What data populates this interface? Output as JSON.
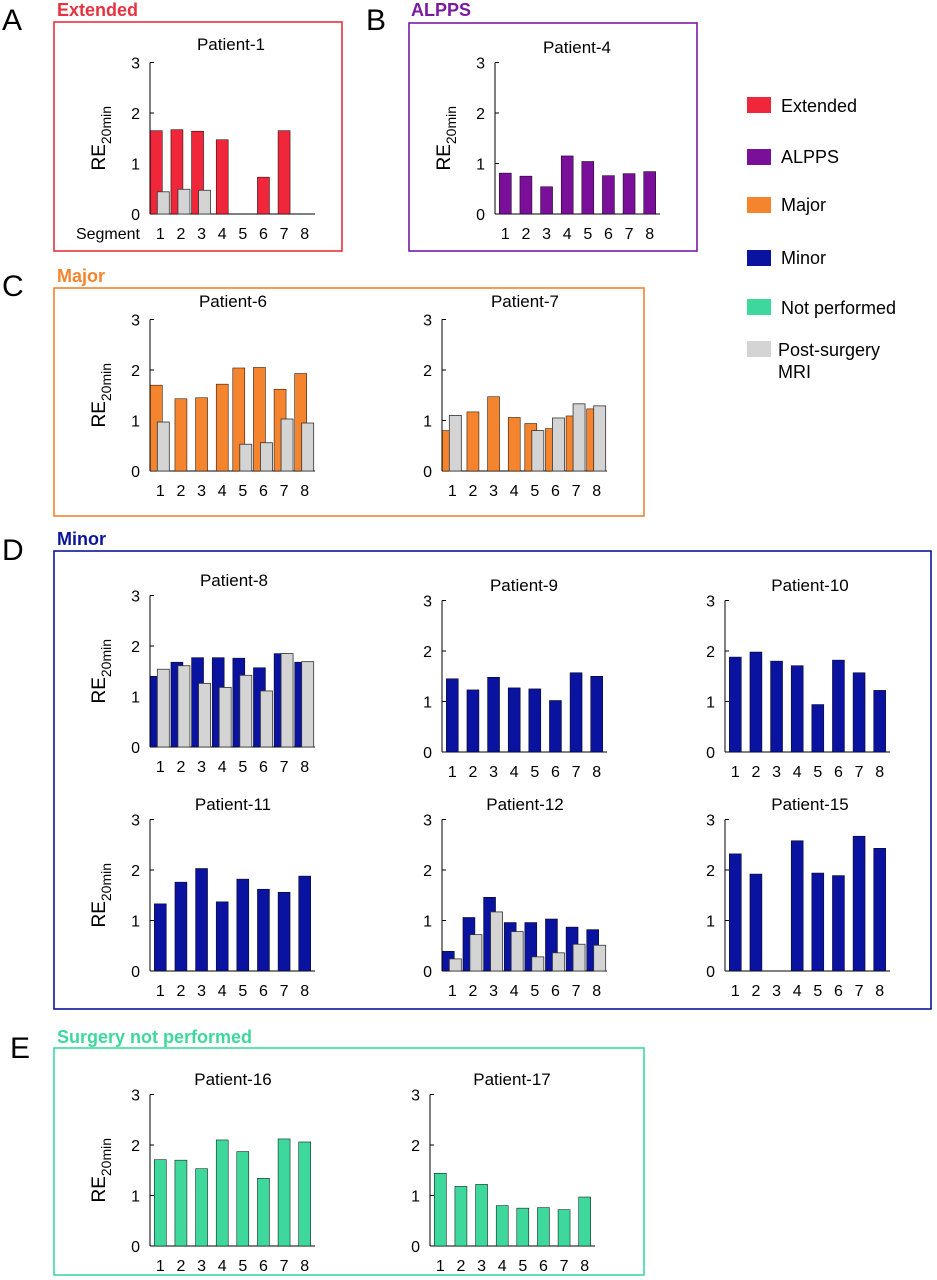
{
  "figure": {
    "y_label_main": "RE",
    "y_label_sub": "20min",
    "segment_label": "Segment",
    "legend": [
      {
        "key": "extended",
        "label": "Extended",
        "color": "#f0263a"
      },
      {
        "key": "alpps",
        "label": "ALPPS",
        "color": "#7a0f99"
      },
      {
        "key": "major",
        "label": "Major",
        "color": "#f5842e"
      },
      {
        "key": "minor",
        "label": "Minor",
        "color": "#0a12a0"
      },
      {
        "key": "not_performed",
        "label": "Not performed",
        "color": "#3fd89c"
      },
      {
        "key": "post_surgery",
        "label": "Post-surgery",
        "label2": "MRI",
        "color": "#d4d4d4"
      }
    ],
    "panels": [
      {
        "letter": "A",
        "title": "Extended",
        "color": "#e8323f",
        "charts": [
          0
        ]
      },
      {
        "letter": "B",
        "title": "ALPPS",
        "color": "#7a1aa0",
        "charts": [
          1
        ]
      },
      {
        "letter": "C",
        "title": "Major",
        "color": "#f5842e",
        "charts": [
          2,
          3
        ]
      },
      {
        "letter": "D",
        "title": "Minor",
        "color": "#0a1699",
        "charts": [
          4,
          5,
          6,
          7,
          8,
          9
        ]
      },
      {
        "letter": "E",
        "title": "Surgery not performed",
        "color": "#3fd89c",
        "charts": [
          10,
          11
        ]
      }
    ]
  },
  "chart_data": [
    {
      "type": "bar",
      "title": "Patient-1",
      "group": "Extended",
      "color": "#f0263a",
      "categories": [
        "1",
        "2",
        "3",
        "4",
        "5",
        "6",
        "7",
        "8"
      ],
      "ylim": [
        0,
        3
      ],
      "yticks": [
        0,
        1,
        2,
        3
      ],
      "series": [
        {
          "values": [
            1.65,
            1.67,
            1.64,
            1.47,
            0,
            0.73,
            1.65,
            0
          ]
        },
        {
          "name": "Post-surgery MRI",
          "values": [
            0.44,
            0.49,
            0.47,
            null,
            null,
            null,
            null,
            null
          ]
        }
      ]
    },
    {
      "type": "bar",
      "title": "Patient-4",
      "group": "ALPPS",
      "color": "#7a0f99",
      "categories": [
        "1",
        "2",
        "3",
        "4",
        "5",
        "6",
        "7",
        "8"
      ],
      "ylim": [
        0,
        3
      ],
      "yticks": [
        0,
        1,
        2,
        3
      ],
      "series": [
        {
          "values": [
            0.81,
            0.75,
            0.54,
            1.15,
            1.04,
            0.76,
            0.8,
            0.84
          ]
        }
      ]
    },
    {
      "type": "bar",
      "title": "Patient-6",
      "group": "Major",
      "color": "#f5842e",
      "categories": [
        "1",
        "2",
        "3",
        "4",
        "5",
        "6",
        "7",
        "8"
      ],
      "ylim": [
        0,
        3
      ],
      "yticks": [
        0,
        1,
        2,
        3
      ],
      "series": [
        {
          "values": [
            1.7,
            1.43,
            1.45,
            1.72,
            2.04,
            2.05,
            1.62,
            1.93
          ]
        },
        {
          "name": "Post-surgery MRI",
          "values": [
            0.97,
            null,
            null,
            null,
            0.53,
            0.56,
            1.03,
            0.95
          ]
        }
      ]
    },
    {
      "type": "bar",
      "title": "Patient-7",
      "group": "Major",
      "color": "#f5842e",
      "categories": [
        "1",
        "2",
        "3",
        "4",
        "5",
        "6",
        "7",
        "8"
      ],
      "ylim": [
        0,
        3
      ],
      "yticks": [
        0,
        1,
        2,
        3
      ],
      "series": [
        {
          "values": [
            0.8,
            1.17,
            1.47,
            1.06,
            0.94,
            0.84,
            1.09,
            1.23
          ]
        },
        {
          "name": "Post-surgery MRI",
          "values": [
            1.1,
            null,
            null,
            null,
            0.8,
            1.05,
            1.33,
            1.29
          ]
        }
      ]
    },
    {
      "type": "bar",
      "title": "Patient-8",
      "group": "Minor",
      "color": "#0a12a0",
      "categories": [
        "1",
        "2",
        "3",
        "4",
        "5",
        "6",
        "7",
        "8"
      ],
      "ylim": [
        0,
        3
      ],
      "yticks": [
        0,
        1,
        2,
        3
      ],
      "series": [
        {
          "values": [
            1.4,
            1.68,
            1.77,
            1.77,
            1.76,
            1.57,
            1.85,
            1.68
          ]
        },
        {
          "name": "Post-surgery MRI",
          "values": [
            1.54,
            1.61,
            1.26,
            1.18,
            1.42,
            1.11,
            1.85,
            1.69
          ]
        }
      ]
    },
    {
      "type": "bar",
      "title": "Patient-9",
      "group": "Minor",
      "color": "#0a12a0",
      "categories": [
        "1",
        "2",
        "3",
        "4",
        "5",
        "6",
        "7",
        "8"
      ],
      "ylim": [
        0,
        3
      ],
      "yticks": [
        0,
        1,
        2,
        3
      ],
      "series": [
        {
          "values": [
            1.45,
            1.23,
            1.48,
            1.27,
            1.25,
            1.02,
            1.57,
            1.5
          ]
        }
      ]
    },
    {
      "type": "bar",
      "title": "Patient-10",
      "group": "Minor",
      "color": "#0a12a0",
      "categories": [
        "1",
        "2",
        "3",
        "4",
        "5",
        "6",
        "7",
        "8"
      ],
      "ylim": [
        0,
        3
      ],
      "yticks": [
        0,
        1,
        2,
        3
      ],
      "series": [
        {
          "values": [
            1.88,
            1.98,
            1.8,
            1.71,
            0.94,
            1.82,
            1.57,
            1.22
          ]
        }
      ]
    },
    {
      "type": "bar",
      "title": "Patient-11",
      "group": "Minor",
      "color": "#0a12a0",
      "categories": [
        "1",
        "2",
        "3",
        "4",
        "5",
        "6",
        "7",
        "8"
      ],
      "ylim": [
        0,
        3
      ],
      "yticks": [
        0,
        1,
        2,
        3
      ],
      "series": [
        {
          "values": [
            1.33,
            1.76,
            2.03,
            1.37,
            1.82,
            1.62,
            1.56,
            1.88
          ]
        }
      ]
    },
    {
      "type": "bar",
      "title": "Patient-12",
      "group": "Minor",
      "color": "#0a12a0",
      "categories": [
        "1",
        "2",
        "3",
        "4",
        "5",
        "6",
        "7",
        "8"
      ],
      "ylim": [
        0,
        3
      ],
      "yticks": [
        0,
        1,
        2,
        3
      ],
      "series": [
        {
          "values": [
            0.39,
            1.06,
            1.46,
            0.96,
            0.96,
            1.03,
            0.87,
            0.82
          ]
        },
        {
          "name": "Post-surgery MRI",
          "values": [
            0.24,
            0.72,
            1.17,
            0.78,
            0.28,
            0.36,
            0.53,
            0.51
          ]
        }
      ]
    },
    {
      "type": "bar",
      "title": "Patient-15",
      "group": "Minor",
      "color": "#0a12a0",
      "categories": [
        "1",
        "2",
        "3",
        "4",
        "5",
        "6",
        "7",
        "8"
      ],
      "ylim": [
        0,
        3
      ],
      "yticks": [
        0,
        1,
        2,
        3
      ],
      "series": [
        {
          "values": [
            2.32,
            1.92,
            0,
            2.58,
            1.94,
            1.89,
            2.67,
            2.43
          ]
        }
      ]
    },
    {
      "type": "bar",
      "title": "Patient-16",
      "group": "Surgery not performed",
      "color": "#3fd89c",
      "categories": [
        "1",
        "2",
        "3",
        "4",
        "5",
        "6",
        "7",
        "8"
      ],
      "ylim": [
        0,
        3
      ],
      "yticks": [
        0,
        1,
        2,
        3
      ],
      "series": [
        {
          "values": [
            1.71,
            1.7,
            1.53,
            2.1,
            1.87,
            1.34,
            2.12,
            2.06
          ]
        }
      ]
    },
    {
      "type": "bar",
      "title": "Patient-17",
      "group": "Surgery not performed",
      "color": "#3fd89c",
      "categories": [
        "1",
        "2",
        "3",
        "4",
        "5",
        "6",
        "7",
        "8"
      ],
      "ylim": [
        0,
        3
      ],
      "yticks": [
        0,
        1,
        2,
        3
      ],
      "series": [
        {
          "values": [
            1.44,
            1.18,
            1.22,
            0.8,
            0.75,
            0.76,
            0.72,
            0.97
          ]
        }
      ]
    }
  ]
}
